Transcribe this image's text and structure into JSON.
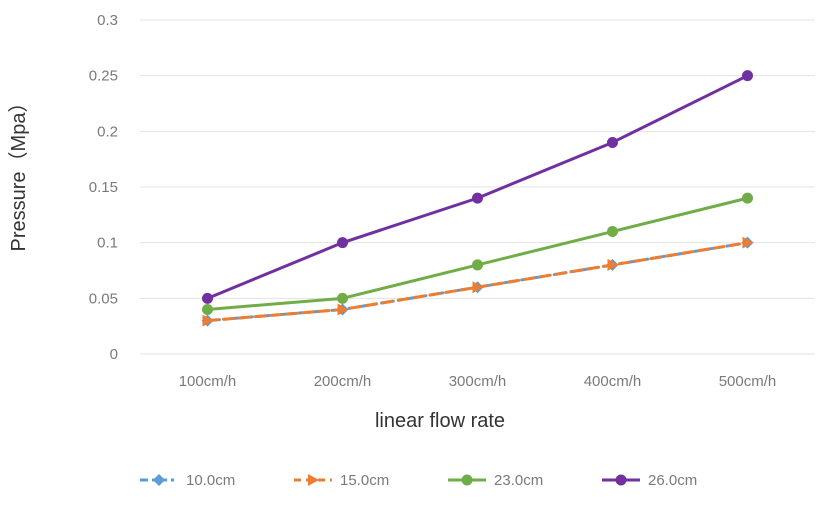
{
  "chart_data": {
    "type": "line",
    "title": "",
    "xlabel": "linear flow rate",
    "ylabel": "Pressure（Mpa）",
    "categories": [
      "100cm/h",
      "200cm/h",
      "300cm/h",
      "400cm/h",
      "500cm/h"
    ],
    "ylim": [
      0,
      0.3
    ],
    "yticks": [
      "0",
      "0.05",
      "0.1",
      "0.15",
      "0.2",
      "0.25",
      "0.3"
    ],
    "grid": true,
    "legend_position": "bottom",
    "series": [
      {
        "name": "10.0cm",
        "values": [
          0.03,
          0.04,
          0.06,
          0.08,
          0.1
        ],
        "color": "#5b9bd5",
        "dash": "dashdot",
        "marker": "diamond"
      },
      {
        "name": "15.0cm",
        "values": [
          0.03,
          0.04,
          0.06,
          0.08,
          0.1
        ],
        "color": "#ed7d31",
        "dash": "dash",
        "marker": "triangle"
      },
      {
        "name": "23.0cm",
        "values": [
          0.04,
          0.05,
          0.08,
          0.11,
          0.14
        ],
        "color": "#70ad47",
        "dash": "solid",
        "marker": "circle"
      },
      {
        "name": "26.0cm",
        "values": [
          0.05,
          0.1,
          0.14,
          0.19,
          0.25
        ],
        "color": "#7030a0",
        "dash": "solid",
        "marker": "circle"
      }
    ]
  }
}
